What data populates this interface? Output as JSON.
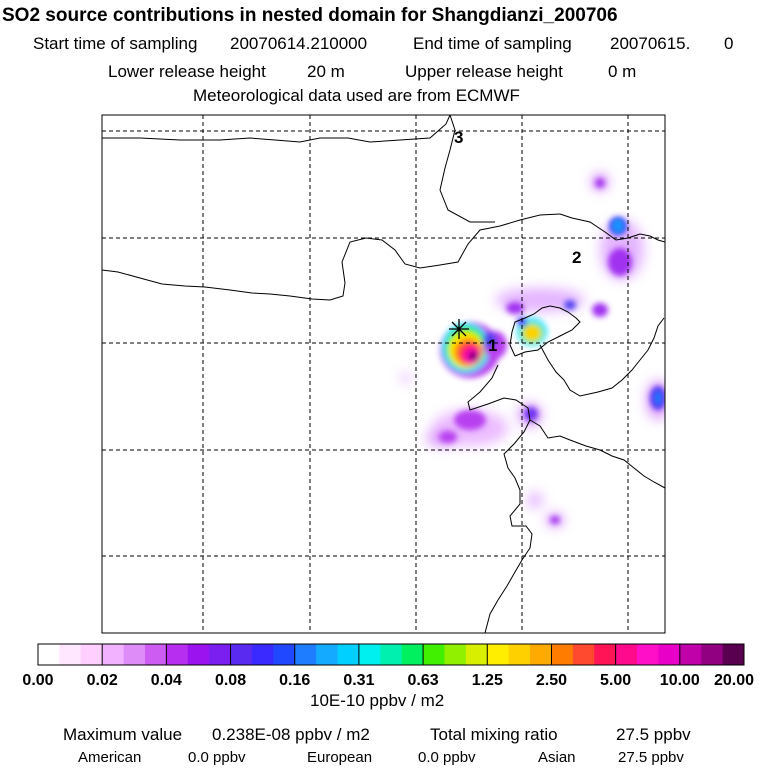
{
  "header": {
    "title": "SO2 source contributions in nested domain for Shangdianzi_200706",
    "start_label": "Start time of sampling",
    "start_value": "20070614.210000",
    "end_label": "End time of sampling",
    "end_value": "20070615.",
    "end_value2": "0",
    "lower_label": "Lower release height",
    "lower_value": "20 m",
    "upper_label": "Upper release height",
    "upper_value": "0 m",
    "met_line": "Meteorological data used are from ECMWF"
  },
  "map": {
    "markers": [
      {
        "label": "1"
      },
      {
        "label": "2"
      },
      {
        "label": "3"
      }
    ],
    "station_symbol": "asterisk"
  },
  "legend": {
    "colors": [
      "#ffffff",
      "#ffe8ff",
      "#ffcfff",
      "#f2b2ff",
      "#de8cf8",
      "#cc5cf2",
      "#b82ef0",
      "#9b14f0",
      "#7b1ef0",
      "#5a2af0",
      "#3a2aff",
      "#2048ff",
      "#1e7cff",
      "#14aaff",
      "#00d0ff",
      "#00f0f0",
      "#00f0b0",
      "#00f060",
      "#40f000",
      "#90f000",
      "#d8f000",
      "#ffee00",
      "#ffd000",
      "#ffaa00",
      "#ff7c00",
      "#ff4a30",
      "#ff1456",
      "#ff0a8c",
      "#ff10c8",
      "#e800c8",
      "#c000a8",
      "#900080",
      "#5a0050"
    ],
    "ticks": [
      "0.00",
      "0.02",
      "0.04",
      "0.08",
      "0.16",
      "0.31",
      "0.63",
      "1.25",
      "2.50",
      "5.00",
      "10.00",
      "20.00"
    ],
    "unit": "10E-10 ppbv / m2"
  },
  "footer": {
    "max_label": "Maximum value",
    "max_value": "0.238E-08 ppbv / m2",
    "total_label": "Total mixing ratio",
    "total_value": "27.5 ppbv",
    "american_label": "American",
    "american_value": "0.0 ppbv",
    "european_label": "European",
    "european_value": "0.0 ppbv",
    "asian_label": "Asian",
    "asian_value": "27.5 ppbv"
  }
}
